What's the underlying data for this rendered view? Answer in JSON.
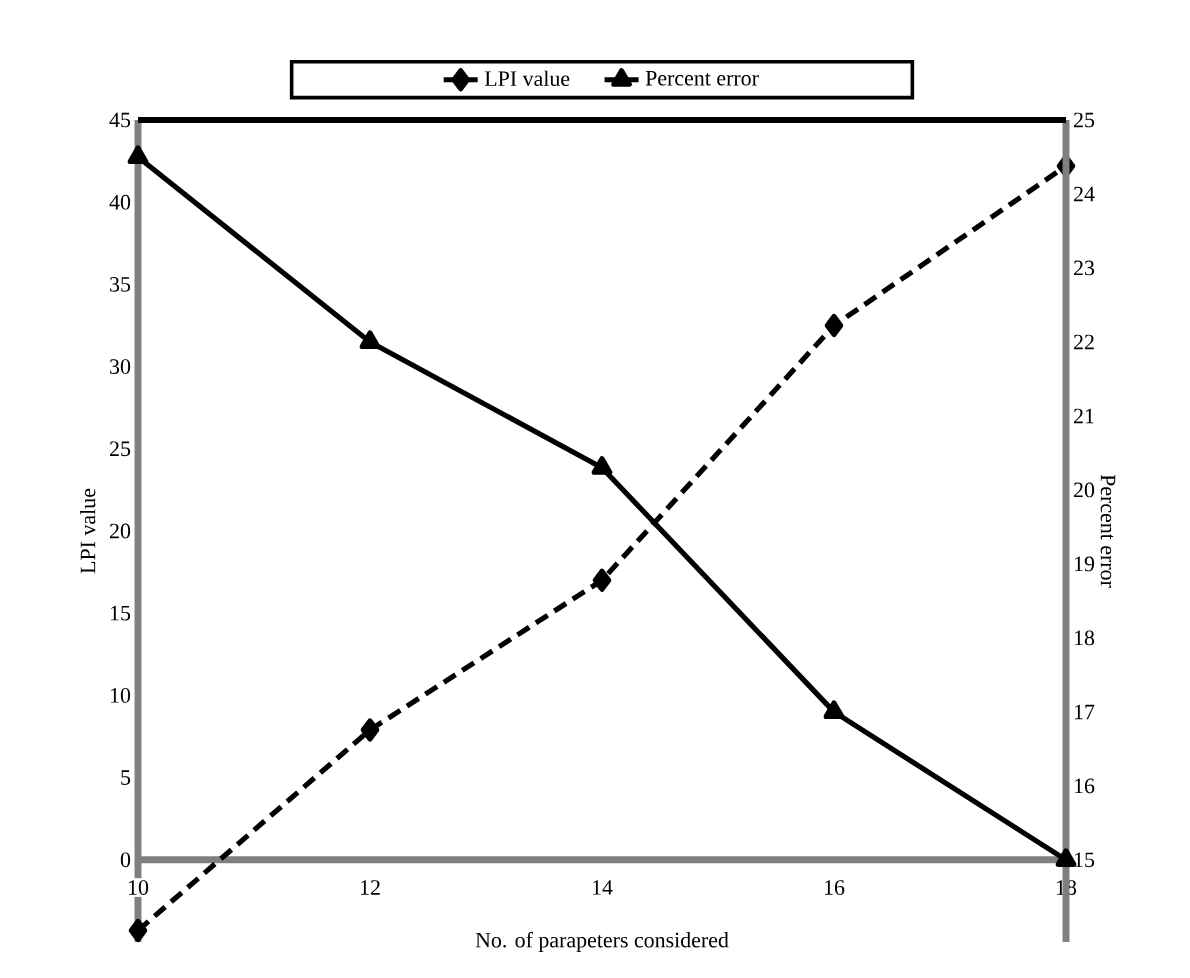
{
  "chart_data": {
    "type": "line",
    "xlabel": "No. of parapeters considered",
    "ylabel": "LPI value",
    "y2label": "Percent error",
    "x": [
      10,
      12,
      14,
      16,
      18
    ],
    "series": [
      {
        "name": "LPI value",
        "color": "#000000",
        "values": [
          -4.3,
          7.9,
          17.0,
          32.5,
          42.2
        ],
        "marker": "diamond",
        "line_style": "dashed"
      },
      {
        "name": "Percent error",
        "color": "#000000",
        "values": [
          24.5,
          22.0,
          20.3,
          17.0,
          15.0
        ],
        "marker": "triangle",
        "line_style": "solid",
        "axis": "y2"
      }
    ],
    "xlim": [
      10,
      18
    ],
    "xticks": [
      10,
      12,
      14,
      16,
      18
    ],
    "ylim": [
      -5,
      45
    ],
    "yticks": [
      0,
      5,
      10,
      15,
      20,
      25,
      30,
      35,
      40,
      45
    ],
    "y2lim": [
      13.89,
      25
    ],
    "y2ticks": [
      15,
      16,
      17,
      18,
      19,
      20,
      21,
      22,
      23,
      24,
      25
    ],
    "legend": "top",
    "grid": false
  }
}
